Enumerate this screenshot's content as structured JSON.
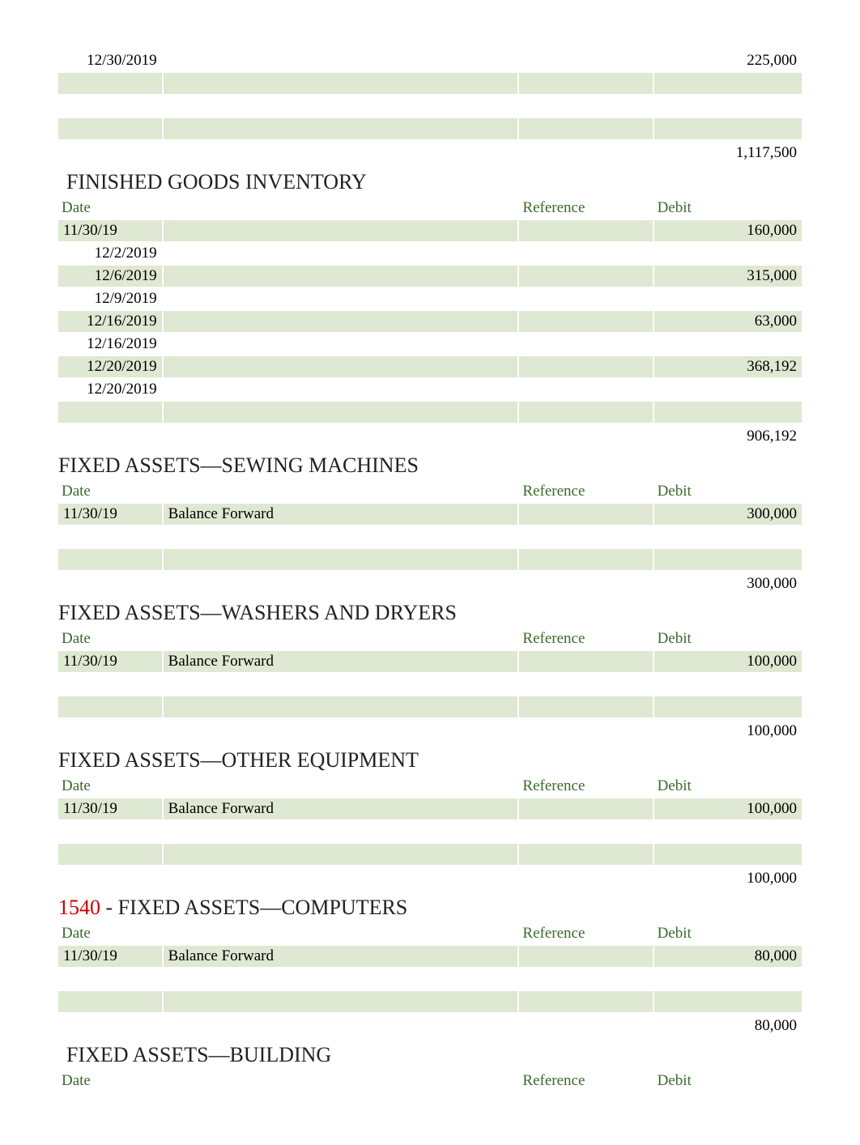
{
  "colors": {
    "shaded_bg": "#dfe8d2",
    "header_text": "#3a6b2a",
    "code_text": "#cc0000",
    "body_text": "#000000",
    "page_bg": "#ffffff"
  },
  "typography": {
    "title_fontsize": 26,
    "cell_fontsize": 19,
    "font_family": "Times New Roman"
  },
  "column_headers": {
    "date": "Date",
    "reference": "Reference",
    "debit": "Debit"
  },
  "top_fragment": {
    "rows": [
      {
        "date": "12/30/2019",
        "desc": "",
        "ref": "",
        "debit": "225,000",
        "shaded": false,
        "date_align": "right"
      },
      {
        "date": "",
        "desc": "",
        "ref": "",
        "debit": "",
        "shaded": true
      },
      {
        "date": "",
        "desc": "",
        "ref": "",
        "debit": "",
        "shaded": false
      },
      {
        "date": "",
        "desc": "",
        "ref": "",
        "debit": "",
        "shaded": true
      }
    ],
    "total": "1,117,500"
  },
  "sections": [
    {
      "title": "FINISHED GOODS INVENTORY",
      "title_indent": true,
      "rows": [
        {
          "date": "11/30/19",
          "desc": "",
          "ref": "",
          "debit": "160,000",
          "shaded": true,
          "date_align": "left"
        },
        {
          "date": "12/2/2019",
          "desc": "",
          "ref": "",
          "debit": "",
          "shaded": false,
          "date_align": "right"
        },
        {
          "date": "12/6/2019",
          "desc": "",
          "ref": "",
          "debit": "315,000",
          "shaded": true,
          "date_align": "right"
        },
        {
          "date": "12/9/2019",
          "desc": "",
          "ref": "",
          "debit": "",
          "shaded": false,
          "date_align": "right"
        },
        {
          "date": "12/16/2019",
          "desc": "",
          "ref": "",
          "debit": "63,000",
          "shaded": true,
          "date_align": "right"
        },
        {
          "date": "12/16/2019",
          "desc": "",
          "ref": "",
          "debit": "",
          "shaded": false,
          "date_align": "right"
        },
        {
          "date": "12/20/2019",
          "desc": "",
          "ref": "",
          "debit": "368,192",
          "shaded": true,
          "date_align": "right"
        },
        {
          "date": "12/20/2019",
          "desc": "",
          "ref": "",
          "debit": "",
          "shaded": false,
          "date_align": "right"
        },
        {
          "date": "",
          "desc": "",
          "ref": "",
          "debit": "",
          "shaded": true
        }
      ],
      "total": "906,192"
    },
    {
      "title": "FIXED ASSETS—SEWING MACHINES",
      "rows": [
        {
          "date": "11/30/19",
          "desc": "Balance Forward",
          "ref": "",
          "debit": "300,000",
          "shaded": true,
          "date_align": "left"
        },
        {
          "date": "",
          "desc": "",
          "ref": "",
          "debit": "",
          "shaded": false
        },
        {
          "date": "",
          "desc": "",
          "ref": "",
          "debit": "",
          "shaded": true
        }
      ],
      "total": "300,000"
    },
    {
      "title": "FIXED ASSETS—WASHERS AND DRYERS",
      "rows": [
        {
          "date": "11/30/19",
          "desc": "Balance Forward",
          "ref": "",
          "debit": "100,000",
          "shaded": true,
          "date_align": "left"
        },
        {
          "date": "",
          "desc": "",
          "ref": "",
          "debit": "",
          "shaded": false
        },
        {
          "date": "",
          "desc": "",
          "ref": "",
          "debit": "",
          "shaded": true
        }
      ],
      "total": "100,000"
    },
    {
      "title": "FIXED ASSETS—OTHER EQUIPMENT",
      "rows": [
        {
          "date": "11/30/19",
          "desc": "Balance Forward",
          "ref": "",
          "debit": "100,000",
          "shaded": true,
          "date_align": "left"
        },
        {
          "date": "",
          "desc": "",
          "ref": "",
          "debit": "",
          "shaded": false
        },
        {
          "date": "",
          "desc": "",
          "ref": "",
          "debit": "",
          "shaded": true
        }
      ],
      "total": "100,000"
    },
    {
      "code": "1540",
      "title": "FIXED ASSETS—COMPUTERS",
      "rows": [
        {
          "date": "11/30/19",
          "desc": "Balance Forward",
          "ref": "",
          "debit": "80,000",
          "shaded": true,
          "date_align": "left"
        },
        {
          "date": "",
          "desc": "",
          "ref": "",
          "debit": "",
          "shaded": false
        },
        {
          "date": "",
          "desc": "",
          "ref": "",
          "debit": "",
          "shaded": true
        }
      ],
      "total": "80,000"
    },
    {
      "title": "FIXED ASSETS—BUILDING",
      "title_indent": true,
      "rows": [],
      "total": null
    }
  ]
}
